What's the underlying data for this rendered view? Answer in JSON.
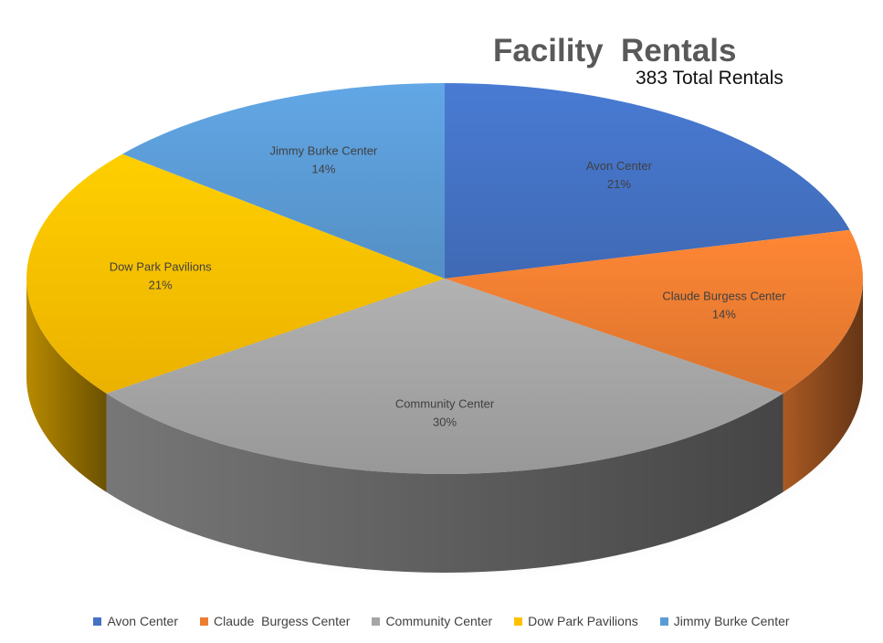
{
  "chart_data": {
    "type": "pie",
    "title": "Facility  Rentals",
    "subtitle": "383 Total Rentals",
    "style": "3d",
    "legend_position": "bottom",
    "slices": [
      {
        "name": "Avon Center",
        "value": 21,
        "label": "21%",
        "color": "#4472C4"
      },
      {
        "name": "Claude  Burgess Center",
        "value": 14,
        "label": "14%",
        "color": "#ED7D31"
      },
      {
        "name": "Community Center",
        "value": 30,
        "label": "30%",
        "color": "#A5A5A5"
      },
      {
        "name": "Dow Park Pavilions",
        "value": 21,
        "label": "21%",
        "color": "#FFC000"
      },
      {
        "name": "Jimmy Burke Center",
        "value": 14,
        "label": "14%",
        "color": "#5B9BD5"
      }
    ]
  }
}
